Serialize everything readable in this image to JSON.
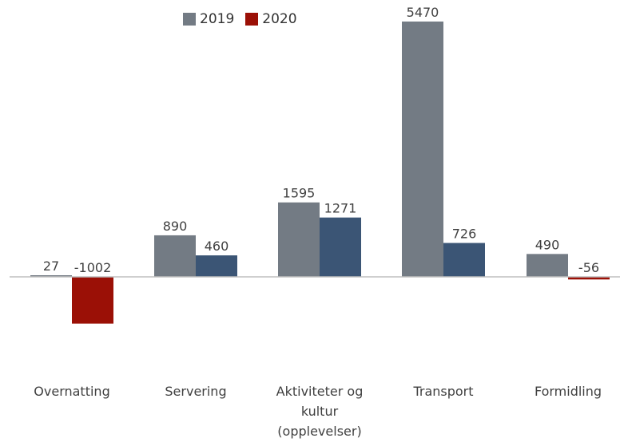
{
  "chart_data": {
    "type": "bar",
    "categories": [
      "Overnatting",
      "Servering",
      "Aktiviteter og kultur (opplevelser)",
      "Transport",
      "Formidling"
    ],
    "category_lines": [
      [
        "Overnatting"
      ],
      [
        "Servering"
      ],
      [
        "Aktiviteter og",
        "kultur",
        "(opplevelser)"
      ],
      [
        "Transport"
      ],
      [
        "Formidling"
      ]
    ],
    "series": [
      {
        "name": "2019",
        "values": [
          27,
          890,
          1595,
          5470,
          490
        ]
      },
      {
        "name": "2020",
        "values": [
          -1002,
          460,
          1271,
          726,
          -56
        ]
      }
    ],
    "data_labels": [
      [
        "27",
        "890",
        "1595",
        "5470",
        "490"
      ],
      [
        "-1002",
        "460",
        "1271",
        "726",
        "-56"
      ]
    ],
    "colors": {
      "series_2019": "#737b84",
      "series_2020_positive": "#3b5575",
      "series_2020_negative": "#9b1006",
      "legend_2020": "#9b1006",
      "axis": "#bfbfbf"
    },
    "ylim": [
      -2600,
      5600
    ],
    "grid": false,
    "legend_position": "top-center",
    "title": "",
    "xlabel": "",
    "ylabel": ""
  }
}
